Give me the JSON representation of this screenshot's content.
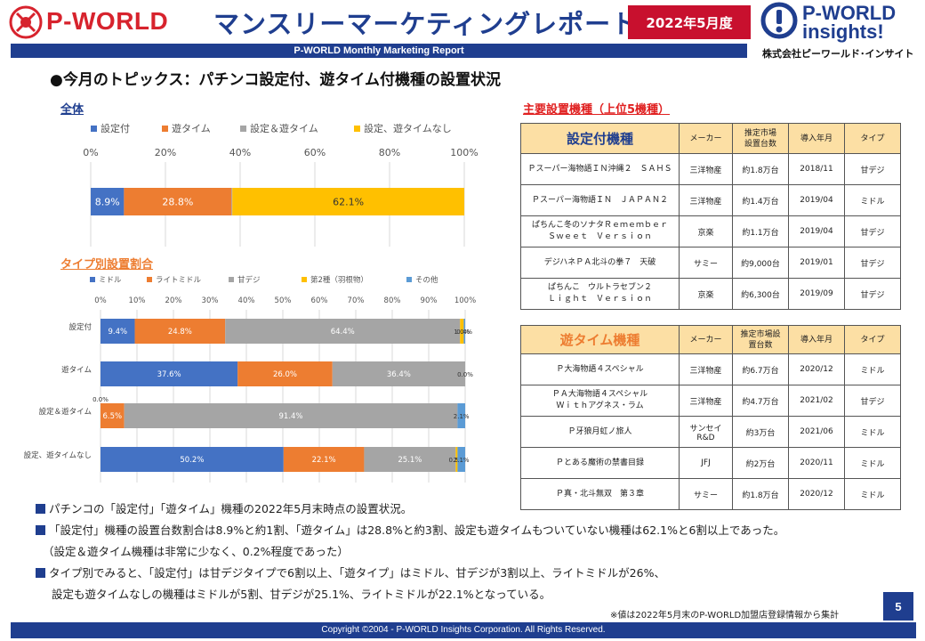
{
  "header": {
    "logo_left_text": "P-WORLD",
    "title": "マンスリーマーケティングレポート",
    "date": "2022年5月度",
    "logo_right_line1": "P-WORLD",
    "logo_right_line2": "insights!",
    "logo_right_company": "株式会社ピーワールド･インサイト",
    "subtitle": "P-WORLD Monthly Marketing Report"
  },
  "topic": "●今月のトピックス：パチンコ設定付、遊タイム付機種の設置状況",
  "sections": {
    "overall": "全体",
    "by_type": "タイプ別設置割合",
    "top_models": "主要設置機種（上位5機種）"
  },
  "colors": {
    "blue": "#4472c4",
    "orange": "#ed7d31",
    "gray": "#a5a5a5",
    "yellow": "#ffc000",
    "lightblue": "#5b9bd5"
  },
  "chart_data": [
    {
      "type": "bar",
      "orientation": "horizontal",
      "stacked": "percent",
      "title": "全体",
      "xlim": [
        0,
        100
      ],
      "ticks": [
        "0%",
        "20%",
        "40%",
        "60%",
        "80%",
        "100%"
      ],
      "legend_position": "top",
      "categories": [
        ""
      ],
      "series": [
        {
          "name": "設定付",
          "values": [
            8.9
          ],
          "labels": [
            "8.9%"
          ],
          "color": "#4472c4"
        },
        {
          "name": "遊タイム",
          "values": [
            28.8
          ],
          "labels": [
            "28.8%"
          ],
          "color": "#ed7d31"
        },
        {
          "name": "設定＆遊タイム",
          "values": [
            0.2
          ],
          "labels": [
            "0.2%"
          ],
          "color": "#a5a5a5"
        },
        {
          "name": "設定、遊タイムなし",
          "values": [
            62.1
          ],
          "labels": [
            "62.1%"
          ],
          "color": "#ffc000"
        }
      ]
    },
    {
      "type": "bar",
      "orientation": "horizontal",
      "stacked": "percent",
      "title": "タイプ別設置割合",
      "xlim": [
        0,
        100
      ],
      "ticks": [
        "0%",
        "10%",
        "20%",
        "30%",
        "40%",
        "50%",
        "60%",
        "70%",
        "80%",
        "90%",
        "100%"
      ],
      "legend_position": "top",
      "categories": [
        "設定付",
        "遊タイム",
        "設定＆遊タイム",
        "設定、遊タイムなし"
      ],
      "series": [
        {
          "name": "ミドル",
          "values": [
            9.4,
            37.6,
            0.0,
            50.2
          ],
          "labels": [
            "9.4%",
            "37.6%",
            "0.0%",
            "50.2%"
          ],
          "color": "#4472c4"
        },
        {
          "name": "ライトミドル",
          "values": [
            24.8,
            26.0,
            6.5,
            22.1
          ],
          "labels": [
            "24.8%",
            "26.0%",
            "6.5%",
            "22.1%"
          ],
          "color": "#ed7d31"
        },
        {
          "name": "甘デジ",
          "values": [
            64.4,
            36.4,
            91.4,
            25.1
          ],
          "labels": [
            "64.4%",
            "36.4%",
            "91.4%",
            "25.1%"
          ],
          "color": "#a5a5a5"
        },
        {
          "name": "第2種（羽根物）",
          "values": [
            1.0,
            0.0,
            0.0,
            0.5
          ],
          "labels": [
            "1.0%",
            "",
            "",
            "0.5%"
          ],
          "color": "#ffc000"
        },
        {
          "name": "その他",
          "values": [
            0.4,
            0.0,
            2.1,
            2.1
          ],
          "labels": [
            "0.4%",
            "0.0%",
            "2.1%",
            "2.1%"
          ],
          "color": "#5b9bd5"
        }
      ]
    },
    {
      "type": "table",
      "title": "設定付機種",
      "columns": [
        "設定付機種",
        "メーカー",
        "推定市場設置台数",
        "導入年月",
        "タイプ"
      ],
      "rows": [
        [
          "Ｐスーパー海物語ＩＮ沖縄２　ＳＡＨＳ",
          "三洋物産",
          "約1.8万台",
          "2018/11",
          "甘デジ"
        ],
        [
          "Ｐスーパー海物語ＩＮ　ＪＡＰＡＮ２",
          "三洋物産",
          "約1.4万台",
          "2019/04",
          "ミドル"
        ],
        [
          "ぱちんこ冬のソナタＲｅｍｅｍｂｅｒ\nＳｗｅｅｔ　Ｖｅｒｓｉｏｎ",
          "京楽",
          "約1.1万台",
          "2019/04",
          "甘デジ"
        ],
        [
          "デジハネＰＡ北斗の拳７　天破",
          "サミー",
          "約9,000台",
          "2019/01",
          "甘デジ"
        ],
        [
          "ぱちんこ　ウルトラセブン２\nＬｉｇｈｔ　Ｖｅｒｓｉｏｎ",
          "京楽",
          "約6,300台",
          "2019/09",
          "甘デジ"
        ]
      ]
    },
    {
      "type": "table",
      "title": "遊タイム機種",
      "columns": [
        "遊タイム機種",
        "メーカー",
        "推定市場設置台数",
        "導入年月",
        "タイプ"
      ],
      "rows": [
        [
          "Ｐ大海物語４スペシャル",
          "三洋物産",
          "約6.7万台",
          "2020/12",
          "ミドル"
        ],
        [
          "ＰＡ大海物語４スペシャル\nＷｉｔｈアグネス・ラム",
          "三洋物産",
          "約4.7万台",
          "2021/02",
          "甘デジ"
        ],
        [
          "Ｐ牙狼月虹ノ旅人",
          "サンセイR&D",
          "約3万台",
          "2021/06",
          "ミドル"
        ],
        [
          "Ｐとある魔術の禁書目録",
          "JFJ",
          "約2万台",
          "2020/11",
          "ミドル"
        ],
        [
          "Ｐ真・北斗無双　第３章",
          "サミー",
          "約1.8万台",
          "2020/12",
          "ミドル"
        ]
      ]
    }
  ],
  "table1_headers": [
    "設定付機種",
    "メーカー",
    "推定市場\n設置台数",
    "導入年月",
    "タイプ"
  ],
  "table2_headers": [
    "遊タイム機種",
    "メーカー",
    "推定市場設\n置台数",
    "導入年月",
    "タイプ"
  ],
  "notes": [
    "パチンコの「設定付」「遊タイム」機種の2022年5月末時点の設置状況。",
    "「設定付」機種の設置台数割合は8.9%と約1割、「遊タイム」は28.8%と約3割、設定も遊タイムもついていない機種は62.1%と6割以上であった。",
    "（設定＆遊タイム機種は非常に少なく、0.2%程度であった）",
    "タイプ別でみると、「設定付」は甘デジタイプで6割以上、「遊タイプ」はミドル、甘デジが3割以上、ライトミドルが26%、",
    "設定も遊タイムなしの機種はミドルが5割、甘デジが25.1%、ライトミドルが22.1%となっている。"
  ],
  "footnote": "※値は2022年5月末のP-WORLD加盟店登録情報から集計",
  "page_number": "5",
  "footer": "Copyright ©2004 - P-WORLD Insights Corporation. All Rights Reserved."
}
